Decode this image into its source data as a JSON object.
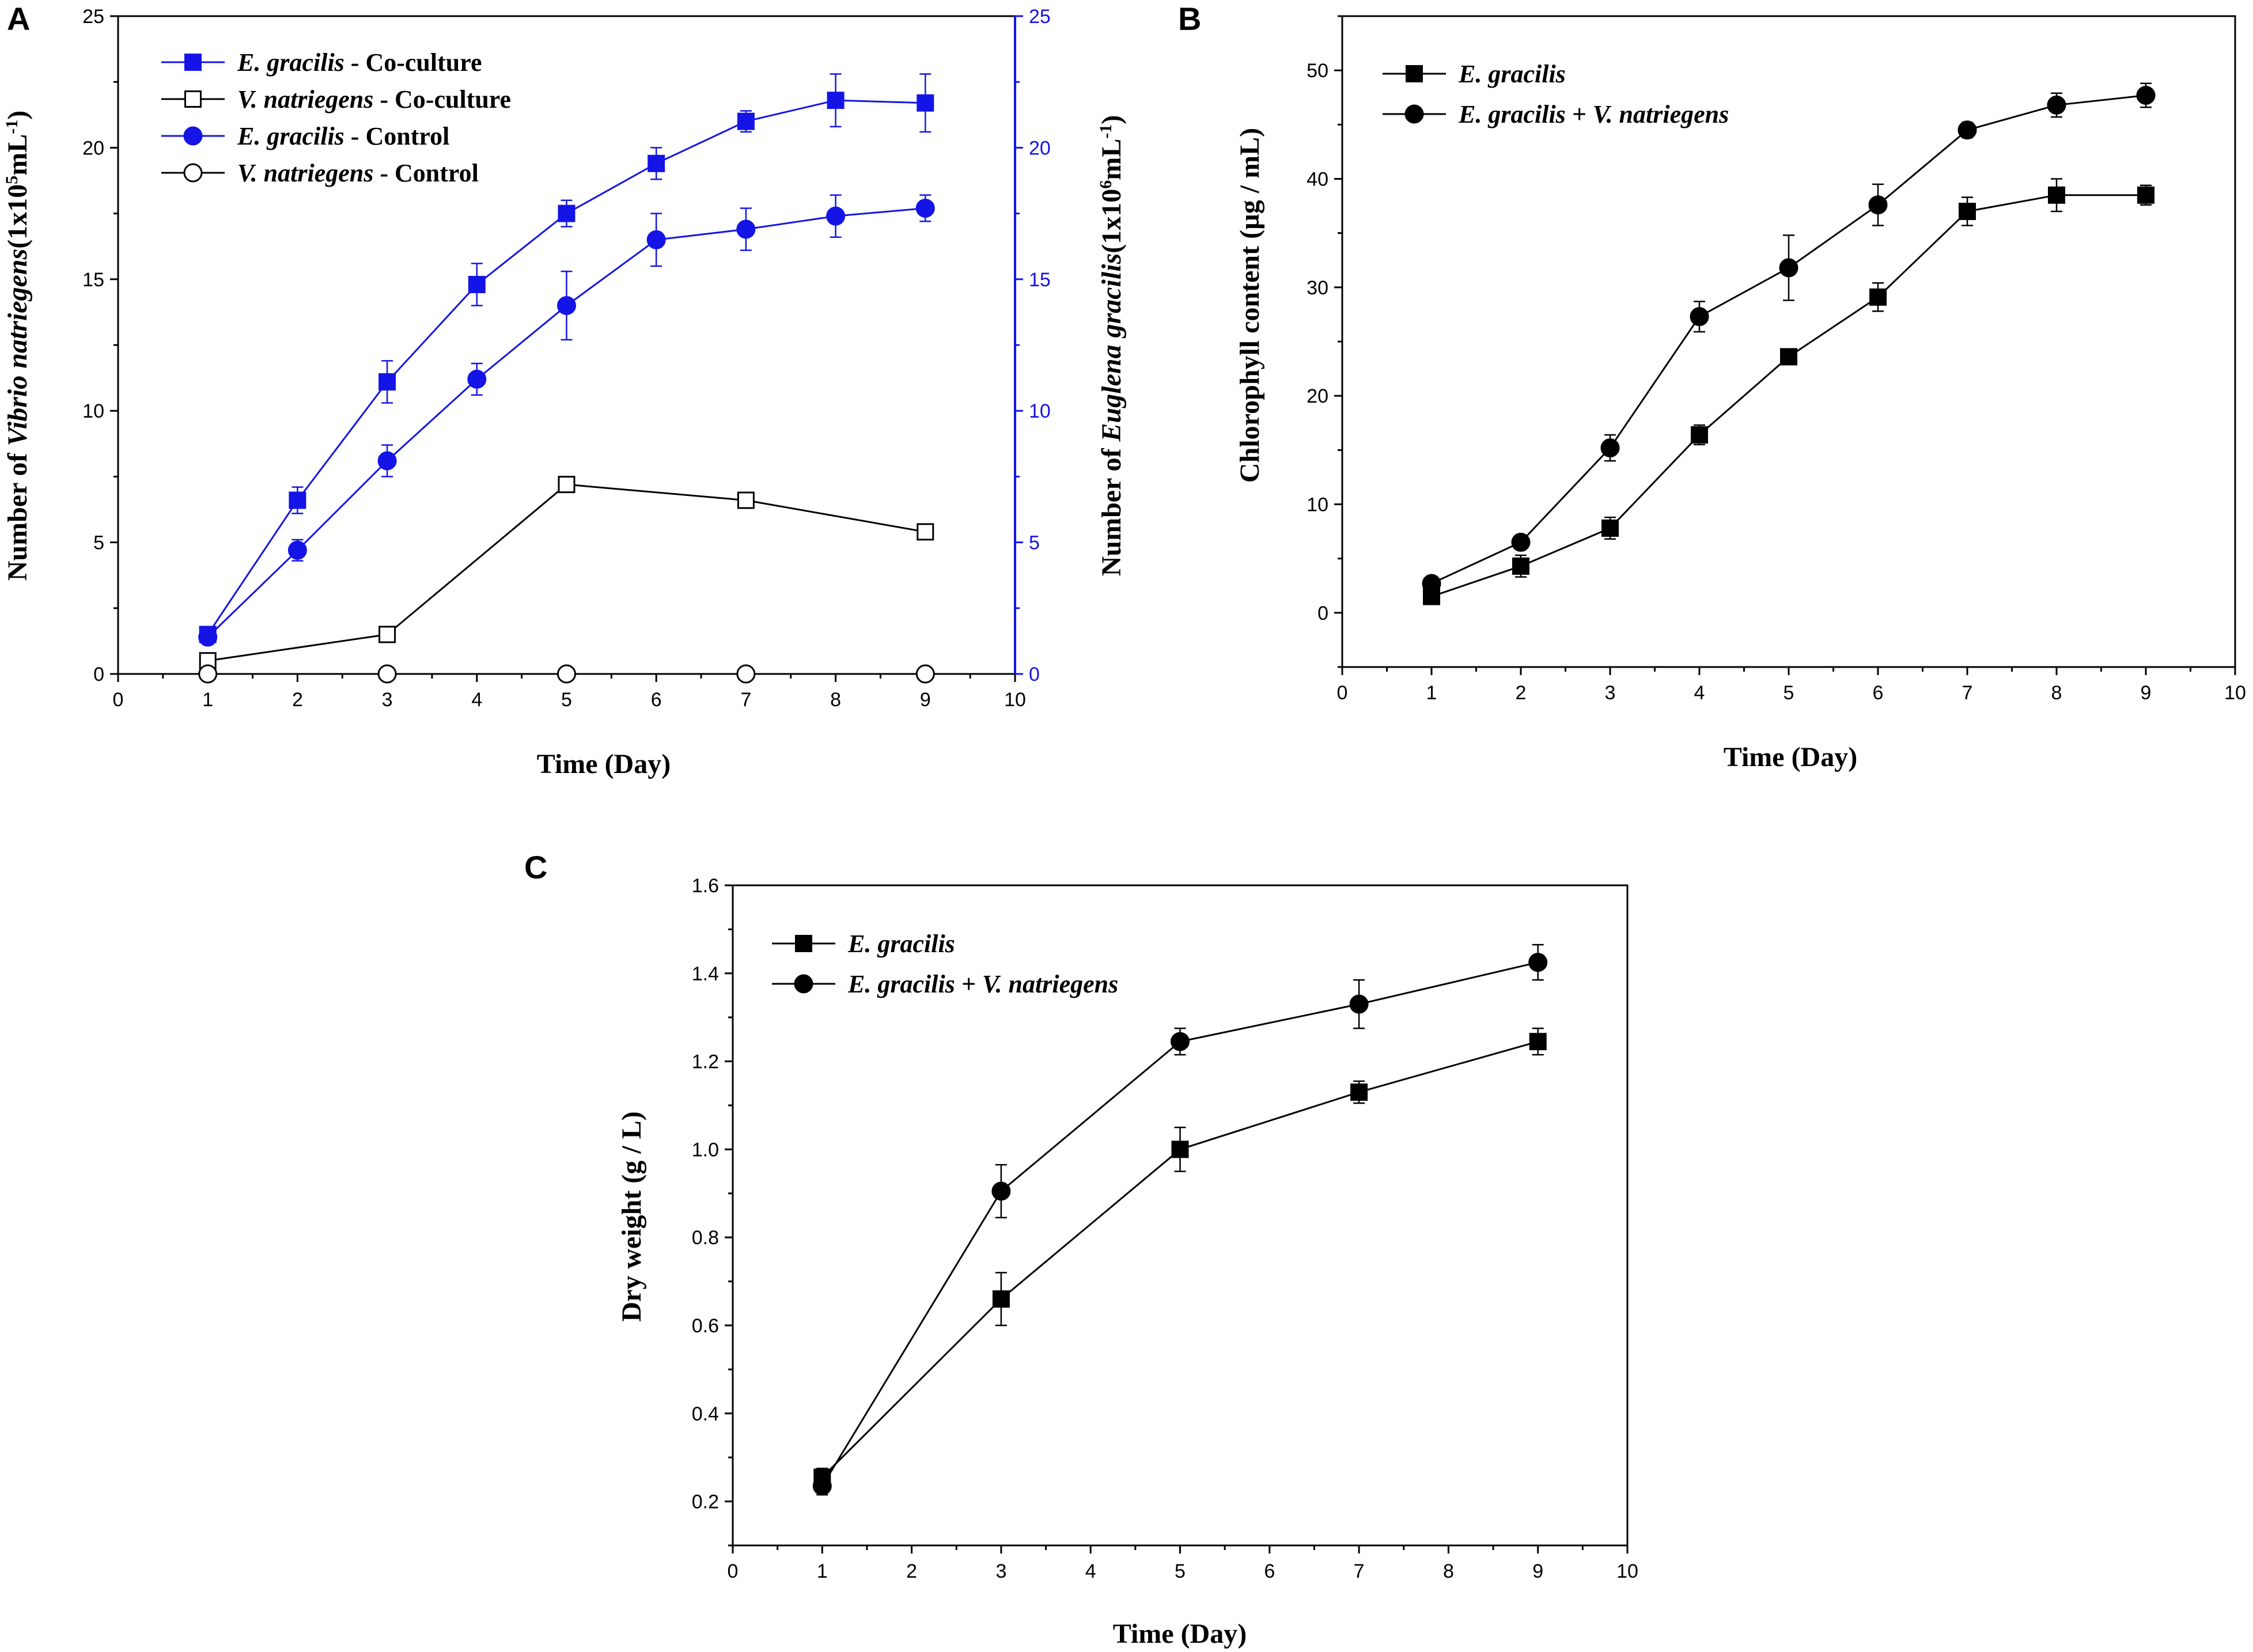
{
  "colors": {
    "blue": "#1414e6",
    "black": "#000000"
  },
  "chart_data": [
    {
      "panel": "A",
      "type": "line",
      "xlabel": "Time (Day)",
      "xlim": [
        0,
        10
      ],
      "xticks": [
        "0",
        "1",
        "2",
        "3",
        "4",
        "5",
        "6",
        "7",
        "8",
        "9",
        "10"
      ],
      "ylabel_left": {
        "prefix": "Number of ",
        "italic": "Vibrio natriegens",
        "unit_base": "(1x10",
        "unit_exp": "5",
        "unit_mid": "mL",
        "unit_exp2": "-1",
        "unit_end": ")"
      },
      "ylabel_right": {
        "prefix": "Number of ",
        "italic": "Euglena gracilis",
        "unit_base": "(1x10",
        "unit_exp": "6",
        "unit_mid": "mL",
        "unit_exp2": "-1",
        "unit_end": ")"
      },
      "ylim": [
        0,
        25
      ],
      "yticks": [
        "0",
        "5",
        "10",
        "15",
        "20",
        "25"
      ],
      "yticks_right": [
        "0",
        "5",
        "10",
        "15",
        "20",
        "25"
      ],
      "series": [
        {
          "name_italic": "E. gracilis",
          "name_rest": " - Co-culture",
          "color": "#1414e6",
          "marker": "square-filled",
          "x": [
            1,
            2,
            3,
            4,
            5,
            6,
            7,
            8,
            9
          ],
          "y": [
            1.5,
            6.6,
            11.1,
            14.8,
            17.5,
            19.4,
            21.0,
            21.8,
            21.7
          ],
          "err": [
            0.2,
            0.5,
            0.8,
            0.8,
            0.5,
            0.6,
            0.4,
            1.0,
            1.1
          ]
        },
        {
          "name_italic": "V. natriegens",
          "name_rest": " - Co-culture",
          "color": "#000000",
          "marker": "square-open",
          "x": [
            1,
            3,
            5,
            7,
            9
          ],
          "y": [
            0.5,
            1.5,
            7.2,
            6.6,
            5.4
          ],
          "err": [
            0.1,
            0.1,
            0.2,
            0.1,
            0.2
          ]
        },
        {
          "name_italic": "E. gracilis",
          "name_rest": " - Control",
          "color": "#1414e6",
          "marker": "circle-filled",
          "x": [
            1,
            2,
            3,
            4,
            5,
            6,
            7,
            8,
            9
          ],
          "y": [
            1.4,
            4.7,
            8.1,
            11.2,
            14.0,
            16.5,
            16.9,
            17.4,
            17.7
          ],
          "err": [
            0.2,
            0.4,
            0.6,
            0.6,
            1.3,
            1.0,
            0.8,
            0.8,
            0.5
          ]
        },
        {
          "name_italic": "V. natriegens",
          "name_rest": " - Control",
          "color": "#000000",
          "marker": "circle-open",
          "x": [
            1,
            3,
            5,
            7,
            9
          ],
          "y": [
            0,
            0,
            0,
            0,
            0
          ],
          "err": [
            0,
            0,
            0,
            0,
            0
          ]
        }
      ]
    },
    {
      "panel": "B",
      "type": "line",
      "xlabel": "Time (Day)",
      "xlim": [
        0,
        10
      ],
      "xticks": [
        "0",
        "1",
        "2",
        "3",
        "4",
        "5",
        "6",
        "7",
        "8",
        "9",
        "10"
      ],
      "ylabel": "Chlorophyll content (µg / mL)",
      "ylim": [
        -5,
        55
      ],
      "yticks": [
        "0",
        "10",
        "20",
        "30",
        "40",
        "50"
      ],
      "series": [
        {
          "name_italic": "E. gracilis",
          "name_rest": "",
          "color": "#000000",
          "marker": "square-filled",
          "x": [
            1,
            2,
            3,
            4,
            5,
            6,
            7,
            8,
            9
          ],
          "y": [
            1.5,
            4.3,
            7.8,
            16.4,
            23.6,
            29.1,
            37.0,
            38.5,
            38.5
          ],
          "err": [
            0.5,
            1.0,
            1.0,
            0.9,
            0.7,
            1.3,
            1.3,
            1.5,
            0.9
          ]
        },
        {
          "name_italic": "E. gracilis + V. natriegens",
          "name_rest": "",
          "color": "#000000",
          "marker": "circle-filled",
          "x": [
            1,
            2,
            3,
            4,
            5,
            6,
            7,
            8,
            9
          ],
          "y": [
            2.7,
            6.5,
            15.2,
            27.3,
            31.8,
            37.6,
            44.5,
            46.8,
            47.7
          ],
          "err": [
            0.3,
            0.6,
            1.2,
            1.4,
            3.0,
            1.9,
            0.7,
            1.1,
            1.1
          ]
        }
      ]
    },
    {
      "panel": "C",
      "type": "line",
      "xlabel": "Time (Day)",
      "xlim": [
        0,
        10
      ],
      "xticks": [
        "0",
        "1",
        "2",
        "3",
        "4",
        "5",
        "6",
        "7",
        "8",
        "9",
        "10"
      ],
      "ylabel": "Dry weight (g / L)",
      "ylim": [
        0.1,
        1.6
      ],
      "yticks": [
        "0.2",
        "0.4",
        "0.6",
        "0.8",
        "1.0",
        "1.2",
        "1.4",
        "1.6"
      ],
      "series": [
        {
          "name_italic": "E. gracilis",
          "name_rest": "",
          "color": "#000000",
          "marker": "square-filled",
          "x": [
            1,
            3,
            5,
            7,
            9
          ],
          "y": [
            0.255,
            0.66,
            1.0,
            1.13,
            1.245
          ],
          "err": [
            0.02,
            0.06,
            0.05,
            0.025,
            0.03
          ]
        },
        {
          "name_italic": "E. gracilis + V. natriegens",
          "name_rest": "",
          "color": "#000000",
          "marker": "circle-filled",
          "x": [
            1,
            3,
            5,
            7,
            9
          ],
          "y": [
            0.235,
            0.905,
            1.245,
            1.33,
            1.425
          ],
          "err": [
            0.02,
            0.06,
            0.03,
            0.055,
            0.04
          ]
        }
      ]
    }
  ]
}
